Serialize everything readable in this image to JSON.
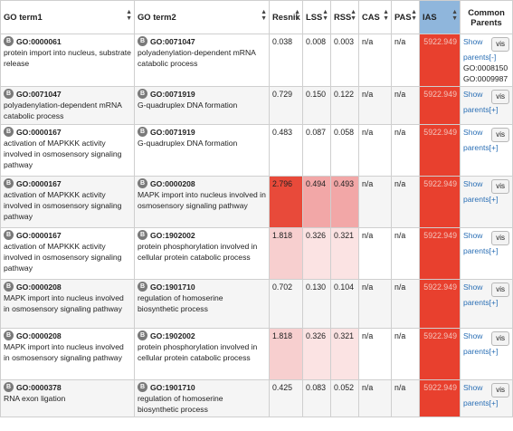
{
  "columns": {
    "go_term1": "GO term1",
    "go_term2": "GO term2",
    "resnik": "Resnik",
    "lss": "LSS",
    "rss": "RSS",
    "cas": "CAS",
    "pas": "PAS",
    "ias": "IAS",
    "common_parents_1": "Common",
    "common_parents_2": "Parents"
  },
  "badge_label": "B",
  "vis_label": "vis",
  "colors": {
    "ias_header": "#8fb6dc",
    "ias_cell": "#e8402e",
    "link": "#2a6fb5"
  },
  "rows": [
    {
      "t1_id": "GO:0000061",
      "t1_name": "protein import into nucleus, substrate release",
      "t2_id": "GO:0071047",
      "t2_name": "polyadenylation-dependent mRNA catabolic process",
      "resnik": "0.038",
      "lss": "0.008",
      "rss": "0.003",
      "cas": "n/a",
      "pas": "n/a",
      "ias": "5922.949",
      "show1": "Show",
      "show2": "parents[-]",
      "parents": [
        "GO:0008150",
        "GO:0009987"
      ]
    },
    {
      "t1_id": "GO:0071047",
      "t1_name": "polyadenylation-dependent mRNA catabolic process",
      "t2_id": "GO:0071919",
      "t2_name": "G-quadruplex DNA formation",
      "resnik": "0.729",
      "lss": "0.150",
      "rss": "0.122",
      "cas": "n/a",
      "pas": "n/a",
      "ias": "5922.949",
      "show1": "Show",
      "show2": "parents[+]",
      "parents": []
    },
    {
      "t1_id": "GO:0000167",
      "t1_name": "activation of MAPKKK activity involved in osmosensory signaling pathway",
      "t2_id": "GO:0071919",
      "t2_name": "G-quadruplex DNA formation",
      "resnik": "0.483",
      "lss": "0.087",
      "rss": "0.058",
      "cas": "n/a",
      "pas": "n/a",
      "ias": "5922.949",
      "show1": "Show",
      "show2": "parents[+]",
      "parents": []
    },
    {
      "t1_id": "GO:0000167",
      "t1_name": "activation of MAPKKK activity involved in osmosensory signaling pathway",
      "t2_id": "GO:0000208",
      "t2_name": "MAPK import into nucleus involved in osmosensory signaling pathway",
      "resnik": "2.796",
      "lss": "0.494",
      "rss": "0.493",
      "cas": "n/a",
      "pas": "n/a",
      "ias": "5922.949",
      "show1": "Show",
      "show2": "parents[+]",
      "parents": []
    },
    {
      "t1_id": "GO:0000167",
      "t1_name": "activation of MAPKKK activity involved in osmosensory signaling pathway",
      "t2_id": "GO:1902002",
      "t2_name": "protein phosphorylation involved in cellular protein catabolic process",
      "resnik": "1.818",
      "lss": "0.326",
      "rss": "0.321",
      "cas": "n/a",
      "pas": "n/a",
      "ias": "5922.949",
      "show1": "Show",
      "show2": "parents[+]",
      "parents": []
    },
    {
      "t1_id": "GO:0000208",
      "t1_name": "MAPK import into nucleus involved in osmosensory signaling pathway",
      "t2_id": "GO:1901710",
      "t2_name": "regulation of homoserine biosynthetic process",
      "resnik": "0.702",
      "lss": "0.130",
      "rss": "0.104",
      "cas": "n/a",
      "pas": "n/a",
      "ias": "5922.949",
      "show1": "Show",
      "show2": "parents[+]",
      "parents": []
    },
    {
      "t1_id": "GO:0000208",
      "t1_name": "MAPK import into nucleus involved in osmosensory signaling pathway",
      "t2_id": "GO:1902002",
      "t2_name": "protein phosphorylation involved in cellular protein catabolic process",
      "resnik": "1.818",
      "lss": "0.326",
      "rss": "0.321",
      "cas": "n/a",
      "pas": "n/a",
      "ias": "5922.949",
      "show1": "Show",
      "show2": "parents[+]",
      "parents": []
    },
    {
      "t1_id": "GO:0000378",
      "t1_name": "RNA exon ligation",
      "t2_id": "GO:1901710",
      "t2_name": "regulation of homoserine biosynthetic process",
      "resnik": "0.425",
      "lss": "0.083",
      "rss": "0.052",
      "cas": "n/a",
      "pas": "n/a",
      "ias": "5922.949",
      "show1": "Show",
      "show2": "parents[+]",
      "parents": []
    }
  ]
}
